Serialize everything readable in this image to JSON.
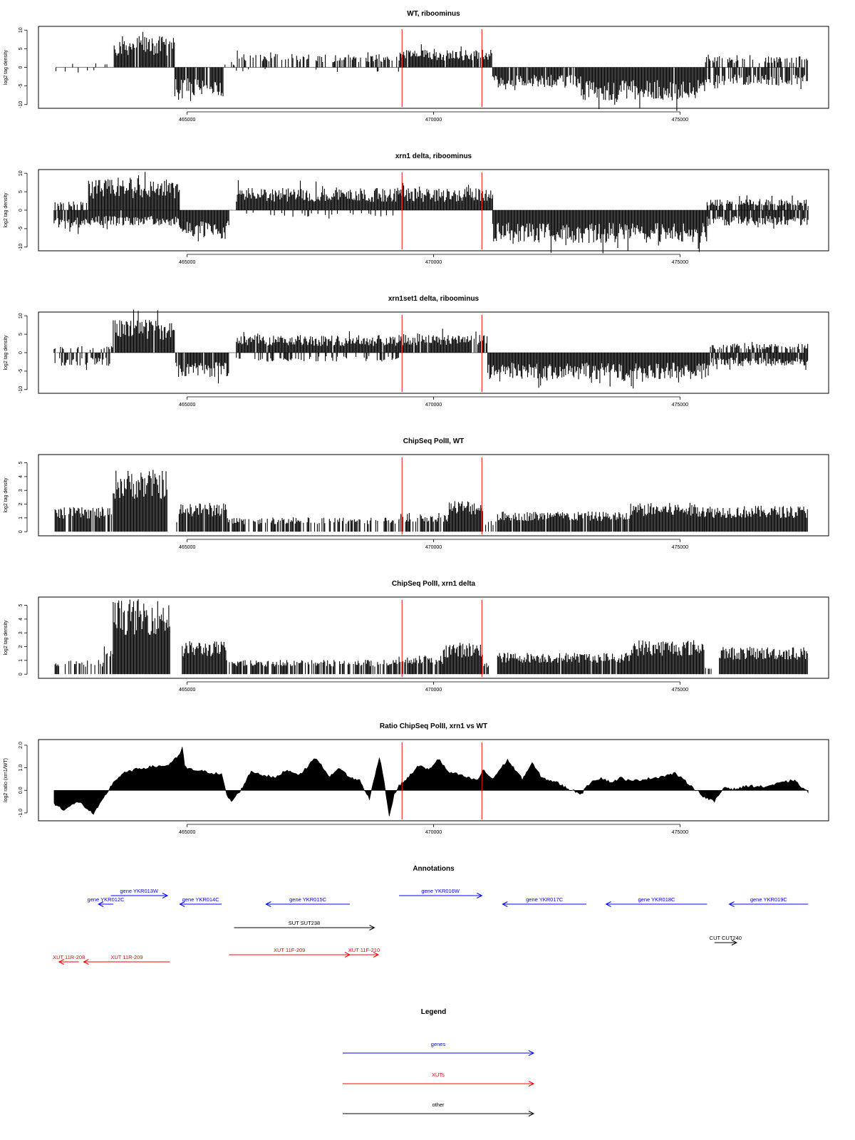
{
  "chart_data": [
    {
      "type": "bar",
      "title": "WT, riboominus",
      "xlabel": "",
      "ylabel": "log2 tag density",
      "xlim": [
        462200,
        477800
      ],
      "ylim": [
        -11,
        11
      ],
      "yticks": [
        -10,
        -5,
        0,
        5,
        10
      ],
      "xticks": [
        465000,
        470000,
        475000
      ],
      "vlines": [
        469360,
        470980
      ],
      "grid": false,
      "segments": [
        {
          "x0": 462300,
          "x1": 463500,
          "level": 1.2,
          "sign": 1,
          "fill": 0.12
        },
        {
          "x0": 462300,
          "x1": 463500,
          "level": 1.2,
          "sign": -1,
          "fill": 0.1
        },
        {
          "x0": 463500,
          "x1": 464750,
          "level": 7.0,
          "sign": 1,
          "fill": 0.95
        },
        {
          "x0": 464750,
          "x1": 465750,
          "level": 6.5,
          "sign": -1,
          "fill": 0.9
        },
        {
          "x0": 465750,
          "x1": 466000,
          "level": 1.0,
          "sign": 1,
          "fill": 0.1
        },
        {
          "x0": 466000,
          "x1": 469300,
          "level": 3.0,
          "sign": 1,
          "fill": 0.5
        },
        {
          "x0": 466000,
          "x1": 469300,
          "level": 1.0,
          "sign": -1,
          "fill": 0.04
        },
        {
          "x0": 469300,
          "x1": 471200,
          "level": 4.0,
          "sign": 1,
          "fill": 0.95
        },
        {
          "x0": 471200,
          "x1": 473000,
          "level": 4.5,
          "sign": -1,
          "fill": 0.9
        },
        {
          "x0": 473000,
          "x1": 475500,
          "level": 7.5,
          "sign": -1,
          "fill": 0.98
        },
        {
          "x0": 475500,
          "x1": 477600,
          "level": 2.5,
          "sign": 1,
          "fill": 0.5
        },
        {
          "x0": 475500,
          "x1": 477600,
          "level": 4.0,
          "sign": -1,
          "fill": 0.75
        }
      ]
    },
    {
      "type": "bar",
      "title": "xrn1 delta, riboominus",
      "xlabel": "",
      "ylabel": "log2 tag density",
      "xlim": [
        462200,
        477800
      ],
      "ylim": [
        -11,
        11
      ],
      "yticks": [
        -10,
        -5,
        0,
        5,
        10
      ],
      "xticks": [
        465000,
        470000,
        475000
      ],
      "vlines": [
        469360,
        470980
      ],
      "grid": false,
      "segments": [
        {
          "x0": 462300,
          "x1": 463000,
          "level": 2.0,
          "sign": 1,
          "fill": 0.5
        },
        {
          "x0": 462300,
          "x1": 463000,
          "level": 4.0,
          "sign": -1,
          "fill": 0.95
        },
        {
          "x0": 463000,
          "x1": 464850,
          "level": 7.0,
          "sign": 1,
          "fill": 1.0
        },
        {
          "x0": 463000,
          "x1": 464850,
          "level": 3.5,
          "sign": -1,
          "fill": 0.95
        },
        {
          "x0": 464850,
          "x1": 465850,
          "level": 6.5,
          "sign": -1,
          "fill": 1.0
        },
        {
          "x0": 466000,
          "x1": 469300,
          "level": 5.0,
          "sign": 1,
          "fill": 1.0
        },
        {
          "x0": 466000,
          "x1": 469300,
          "level": 1.5,
          "sign": -1,
          "fill": 0.15
        },
        {
          "x0": 469300,
          "x1": 471200,
          "level": 5.0,
          "sign": 1,
          "fill": 1.0
        },
        {
          "x0": 471200,
          "x1": 475550,
          "level": 7.5,
          "sign": -1,
          "fill": 1.0
        },
        {
          "x0": 475550,
          "x1": 477600,
          "level": 2.5,
          "sign": 1,
          "fill": 0.8
        },
        {
          "x0": 475550,
          "x1": 477600,
          "level": 3.5,
          "sign": -1,
          "fill": 0.95
        }
      ]
    },
    {
      "type": "bar",
      "title": "xrn1set1 delta, riboominus",
      "xlabel": "",
      "ylabel": "log2 tag density",
      "xlim": [
        462200,
        477800
      ],
      "ylim": [
        -11,
        11
      ],
      "yticks": [
        -10,
        -5,
        0,
        5,
        10
      ],
      "xticks": [
        465000,
        470000,
        475000
      ],
      "vlines": [
        469360,
        470980
      ],
      "grid": false,
      "segments": [
        {
          "x0": 462300,
          "x1": 463500,
          "level": 1.5,
          "sign": 1,
          "fill": 0.3
        },
        {
          "x0": 462300,
          "x1": 463500,
          "level": 3.0,
          "sign": -1,
          "fill": 0.5
        },
        {
          "x0": 463500,
          "x1": 464750,
          "level": 7.5,
          "sign": 1,
          "fill": 0.95
        },
        {
          "x0": 464750,
          "x1": 465850,
          "level": 5.5,
          "sign": -1,
          "fill": 0.9
        },
        {
          "x0": 466000,
          "x1": 469300,
          "level": 4.0,
          "sign": 1,
          "fill": 0.95
        },
        {
          "x0": 466000,
          "x1": 469300,
          "level": 2.0,
          "sign": -1,
          "fill": 0.3
        },
        {
          "x0": 469300,
          "x1": 471100,
          "level": 4.5,
          "sign": 1,
          "fill": 0.95
        },
        {
          "x0": 471100,
          "x1": 475600,
          "level": 6.0,
          "sign": -1,
          "fill": 1.0
        },
        {
          "x0": 475600,
          "x1": 477600,
          "level": 2.0,
          "sign": 1,
          "fill": 0.6
        },
        {
          "x0": 475600,
          "x1": 477600,
          "level": 3.0,
          "sign": -1,
          "fill": 0.9
        }
      ]
    },
    {
      "type": "bar",
      "title": "ChipSeq PolII, WT",
      "xlabel": "",
      "ylabel": "log2 tag density",
      "xlim": [
        462200,
        477800
      ],
      "ylim": [
        -0.3,
        5.6
      ],
      "yticks": [
        0,
        1,
        2,
        3,
        4,
        5
      ],
      "xticks": [
        465000,
        470000,
        475000
      ],
      "vlines": [
        469360,
        470980
      ],
      "grid": false,
      "segments": [
        {
          "x0": 462300,
          "x1": 463500,
          "level": 1.7,
          "sign": 1,
          "fill": 0.8
        },
        {
          "x0": 463500,
          "x1": 464600,
          "level": 4.3,
          "sign": 1,
          "fill": 1.0
        },
        {
          "x0": 464600,
          "x1": 464800,
          "level": 1.0,
          "sign": 1,
          "fill": 0.2
        },
        {
          "x0": 464800,
          "x1": 465800,
          "level": 2.0,
          "sign": 1,
          "fill": 0.9
        },
        {
          "x0": 465800,
          "x1": 469300,
          "level": 1.0,
          "sign": 1,
          "fill": 0.6
        },
        {
          "x0": 469300,
          "x1": 470300,
          "level": 1.3,
          "sign": 1,
          "fill": 0.8
        },
        {
          "x0": 470300,
          "x1": 471000,
          "level": 2.2,
          "sign": 1,
          "fill": 1.0
        },
        {
          "x0": 471000,
          "x1": 471300,
          "level": 0.8,
          "sign": 1,
          "fill": 0.3
        },
        {
          "x0": 471300,
          "x1": 474000,
          "level": 1.4,
          "sign": 1,
          "fill": 0.9
        },
        {
          "x0": 474000,
          "x1": 475500,
          "level": 2.0,
          "sign": 1,
          "fill": 1.0
        },
        {
          "x0": 475500,
          "x1": 477600,
          "level": 1.8,
          "sign": 1,
          "fill": 1.0
        }
      ]
    },
    {
      "type": "bar",
      "title": "ChipSeq PolII, xrn1 delta",
      "xlabel": "",
      "ylabel": "log2 tag density",
      "xlim": [
        462200,
        477800
      ],
      "ylim": [
        -0.3,
        5.6
      ],
      "yticks": [
        0,
        1,
        2,
        3,
        4,
        5
      ],
      "xticks": [
        465000,
        470000,
        475000
      ],
      "vlines": [
        469360,
        470980
      ],
      "grid": false,
      "segments": [
        {
          "x0": 462300,
          "x1": 463300,
          "level": 1.0,
          "sign": 1,
          "fill": 0.5
        },
        {
          "x0": 463300,
          "x1": 463500,
          "level": 2.0,
          "sign": 1,
          "fill": 0.8
        },
        {
          "x0": 463500,
          "x1": 464650,
          "level": 5.2,
          "sign": 1,
          "fill": 1.0
        },
        {
          "x0": 464650,
          "x1": 464900,
          "level": 0.5,
          "sign": 1,
          "fill": 0.1
        },
        {
          "x0": 464900,
          "x1": 465800,
          "level": 2.3,
          "sign": 1,
          "fill": 1.0
        },
        {
          "x0": 465800,
          "x1": 469300,
          "level": 1.0,
          "sign": 1,
          "fill": 0.65
        },
        {
          "x0": 469300,
          "x1": 470200,
          "level": 1.3,
          "sign": 1,
          "fill": 0.9
        },
        {
          "x0": 470200,
          "x1": 471000,
          "level": 2.2,
          "sign": 1,
          "fill": 1.0
        },
        {
          "x0": 471000,
          "x1": 471300,
          "level": 0.8,
          "sign": 1,
          "fill": 0.3
        },
        {
          "x0": 471300,
          "x1": 474000,
          "level": 1.5,
          "sign": 1,
          "fill": 0.95
        },
        {
          "x0": 474000,
          "x1": 475500,
          "level": 2.4,
          "sign": 1,
          "fill": 1.0
        },
        {
          "x0": 475500,
          "x1": 475800,
          "level": 0.5,
          "sign": 1,
          "fill": 0.2
        },
        {
          "x0": 475800,
          "x1": 477600,
          "level": 1.9,
          "sign": 1,
          "fill": 1.0
        }
      ]
    },
    {
      "type": "area",
      "title": "Ratio ChipSeq PolII, xrn1 vs WT",
      "xlabel": "",
      "ylabel": "log2 ratio (xrn1/WT)",
      "xlim": [
        462200,
        477800
      ],
      "ylim": [
        -1.35,
        2.25
      ],
      "yticks": [
        -1.0,
        0.0,
        1.0,
        2.0
      ],
      "ytick_labels": [
        "-1.0",
        "0.0",
        "1.0",
        "2.0"
      ],
      "xticks": [
        465000,
        470000,
        475000
      ],
      "vlines": [
        469360,
        470980
      ],
      "grid": false,
      "x": [
        462300,
        462500,
        462800,
        463100,
        463250,
        463500,
        463700,
        464000,
        464300,
        464600,
        464850,
        464900,
        464950,
        465000,
        465300,
        465700,
        465800,
        465900,
        466100,
        466300,
        466500,
        466800,
        467000,
        467300,
        467600,
        467900,
        468100,
        468300,
        468500,
        468700,
        468900,
        469000,
        469100,
        469200,
        469300,
        469500,
        469700,
        469900,
        470100,
        470300,
        470500,
        470700,
        470900,
        471000,
        471200,
        471500,
        471800,
        472000,
        472200,
        472500,
        472700,
        473000,
        473200,
        473400,
        473600,
        473800,
        474000,
        474300,
        474600,
        474900,
        475200,
        475500,
        475700,
        475900,
        476100,
        476400,
        476700,
        477000,
        477300,
        477500,
        477600
      ],
      "y": [
        -0.6,
        -0.85,
        -0.5,
        -1.05,
        -0.55,
        0.35,
        0.75,
        0.95,
        1.05,
        1.1,
        1.55,
        1.95,
        1.1,
        0.95,
        0.85,
        0.7,
        -0.2,
        -0.5,
        0.05,
        0.85,
        0.7,
        0.55,
        0.9,
        0.7,
        1.45,
        0.6,
        1.0,
        0.55,
        0.45,
        -0.4,
        1.5,
        0.4,
        -1.15,
        -0.2,
        0.2,
        0.6,
        1.1,
        0.9,
        1.4,
        0.8,
        0.7,
        0.55,
        0.45,
        0.9,
        0.5,
        1.35,
        0.5,
        1.2,
        0.55,
        0.35,
        0.1,
        -0.15,
        0.4,
        0.55,
        0.35,
        0.55,
        0.4,
        0.5,
        0.6,
        0.75,
        0.25,
        -0.3,
        -0.5,
        0.15,
        0.05,
        0.2,
        0.15,
        0.3,
        0.45,
        0.1,
        -0.1
      ]
    }
  ],
  "annotations": {
    "title": "Annotations",
    "colors": {
      "gene": "#0000ff",
      "xut": "#ff0000",
      "other": "#000000"
    },
    "items": [
      {
        "label": "gene YKR013W",
        "kind": "gene",
        "x0": 463450,
        "x1": 464600,
        "dir": "right",
        "row": 0
      },
      {
        "label": "gene YKR012C",
        "kind": "gene",
        "x0": 463200,
        "x1": 463500,
        "dir": "left",
        "row": 1
      },
      {
        "label": "gene YKR014C",
        "kind": "gene",
        "x0": 464850,
        "x1": 465700,
        "dir": "left",
        "row": 1
      },
      {
        "label": "gene YKR015C",
        "kind": "gene",
        "x0": 466600,
        "x1": 468300,
        "dir": "left",
        "row": 1
      },
      {
        "label": "gene YKR016W",
        "kind": "gene",
        "x0": 469300,
        "x1": 470980,
        "dir": "right",
        "row": 0
      },
      {
        "label": "gene YKR017C",
        "kind": "gene",
        "x0": 471400,
        "x1": 473100,
        "dir": "left",
        "row": 1
      },
      {
        "label": "gene YKR018C",
        "kind": "gene",
        "x0": 473500,
        "x1": 475550,
        "dir": "left",
        "row": 1
      },
      {
        "label": "gene YKR019C",
        "kind": "gene",
        "x0": 476000,
        "x1": 477600,
        "dir": "left",
        "row": 1
      },
      {
        "label": "SUT SUT238",
        "kind": "other",
        "x0": 465950,
        "x1": 468800,
        "dir": "right",
        "row": 2
      },
      {
        "label": "CUT CUT240",
        "kind": "other",
        "x0": 475700,
        "x1": 476150,
        "dir": "right",
        "row": 3
      },
      {
        "label": "XUT 11F-209",
        "kind": "xut",
        "x0": 465850,
        "x1": 468300,
        "dir": "right",
        "row": 4
      },
      {
        "label": "XUT 11F-210",
        "kind": "xut",
        "x0": 468300,
        "x1": 468880,
        "dir": "right",
        "row": 4
      },
      {
        "label": "XUT 11R-208",
        "kind": "xut",
        "x0": 462400,
        "x1": 462800,
        "dir": "left",
        "row": 5
      },
      {
        "label": "XUT 11R-209",
        "kind": "xut",
        "x0": 462900,
        "x1": 464650,
        "dir": "left",
        "row": 5
      }
    ]
  },
  "legend": {
    "title": "Legend",
    "items": [
      {
        "label": "genes",
        "kind": "gene"
      },
      {
        "label": "XUTs",
        "kind": "xut"
      },
      {
        "label": "other",
        "kind": "other"
      }
    ]
  }
}
